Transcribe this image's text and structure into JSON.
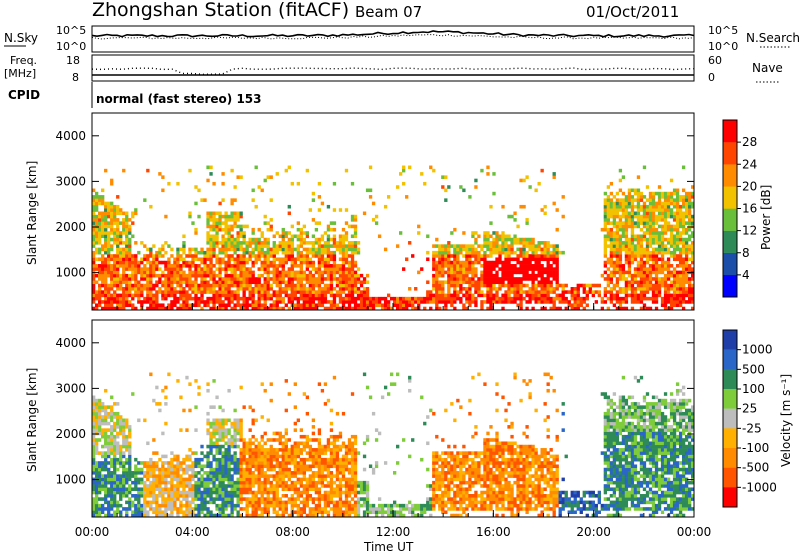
{
  "header": {
    "station": "Zhongshan Station (fitACF)",
    "beam": "Beam 07",
    "date": "01/Oct/2011"
  },
  "params_panel": {
    "nsky_label": "N.Sky",
    "nsearch_label": "N.Search",
    "nsky_ticks": [
      "10^5",
      "10^0"
    ],
    "nsearch_ticks": [
      "10^5",
      "10^0"
    ],
    "freq_label": [
      "Freq.",
      "[MHz]"
    ],
    "freq_ticks": [
      "18",
      "8"
    ],
    "nave_label": "Nave",
    "nave_ticks": [
      "60",
      "0"
    ],
    "cpid_label": "CPID",
    "cpid_text": "normal (fast stereo) 153"
  },
  "chart_data": [
    {
      "type": "heatmap",
      "name": "power",
      "ylabel": "Slant Range [km]",
      "yticks": [
        "1000",
        "2000",
        "3000",
        "4000"
      ],
      "ylim": [
        180,
        4500
      ],
      "colorbar_label": "Power [dB]",
      "colorbar_ticks": [
        "4",
        "8",
        "12",
        "16",
        "20",
        "24",
        "28"
      ],
      "colors": [
        "#0000ff",
        "#1b4ea8",
        "#2e8b57",
        "#6abf3a",
        "#f2c200",
        "#ff8c00",
        "#ff4500",
        "#ff0000"
      ]
    },
    {
      "type": "heatmap",
      "name": "velocity",
      "ylabel": "Slant Range [km]",
      "yticks": [
        "1000",
        "2000",
        "3000",
        "4000"
      ],
      "ylim": [
        180,
        4500
      ],
      "colorbar_label": "Velocity [m s⁻¹]",
      "colorbar_ticks": [
        "1000",
        "500",
        "100",
        "25",
        "-25",
        "-100",
        "-500",
        "-1000"
      ],
      "colors": [
        "#1f3ea8",
        "#2a66c8",
        "#2e8b57",
        "#7fcc3a",
        "#bdbdbd",
        "#ffb000",
        "#ff8c00",
        "#ff5500",
        "#ff0000"
      ],
      "xlabel": "Time UT",
      "xticks": [
        "00:00",
        "04:00",
        "08:00",
        "12:00",
        "16:00",
        "20:00",
        "00:00"
      ]
    }
  ]
}
